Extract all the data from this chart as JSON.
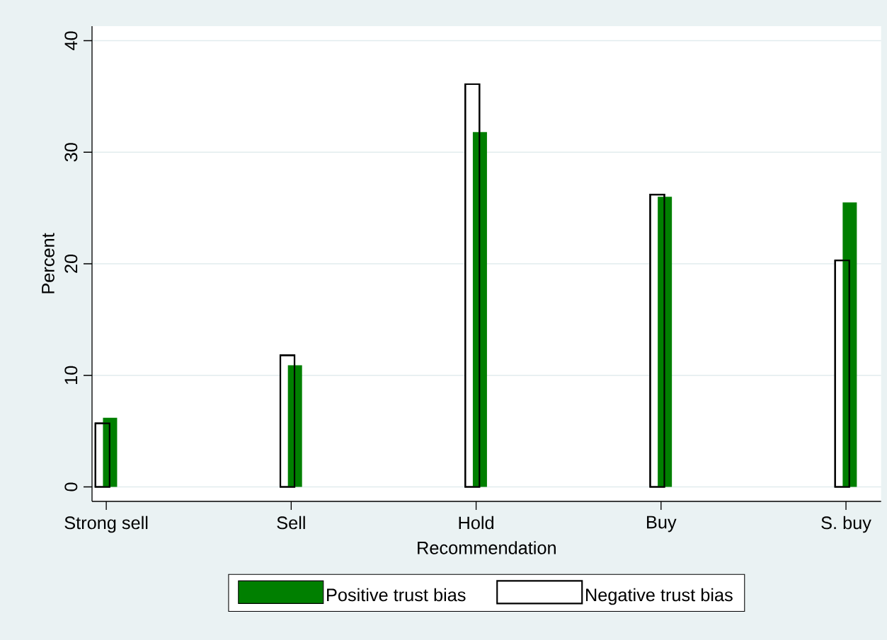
{
  "chart_data": {
    "type": "bar",
    "xlabel": "Recommendation",
    "ylabel": "Percent",
    "categories": [
      "Strong sell",
      "Sell",
      "Hold",
      "Buy",
      "S. buy"
    ],
    "series": [
      {
        "name": "Positive trust bias",
        "color": "#007f00",
        "values": [
          6.2,
          10.9,
          31.8,
          26.0,
          25.5
        ]
      },
      {
        "name": "Negative trust bias",
        "color": "#ffffff",
        "values": [
          5.7,
          11.8,
          36.1,
          26.2,
          20.3
        ]
      }
    ],
    "ylim": [
      -1.3,
      41.3
    ],
    "yticks": [
      0,
      10,
      20,
      30,
      40
    ],
    "grid": "y",
    "legend": "bottom"
  }
}
